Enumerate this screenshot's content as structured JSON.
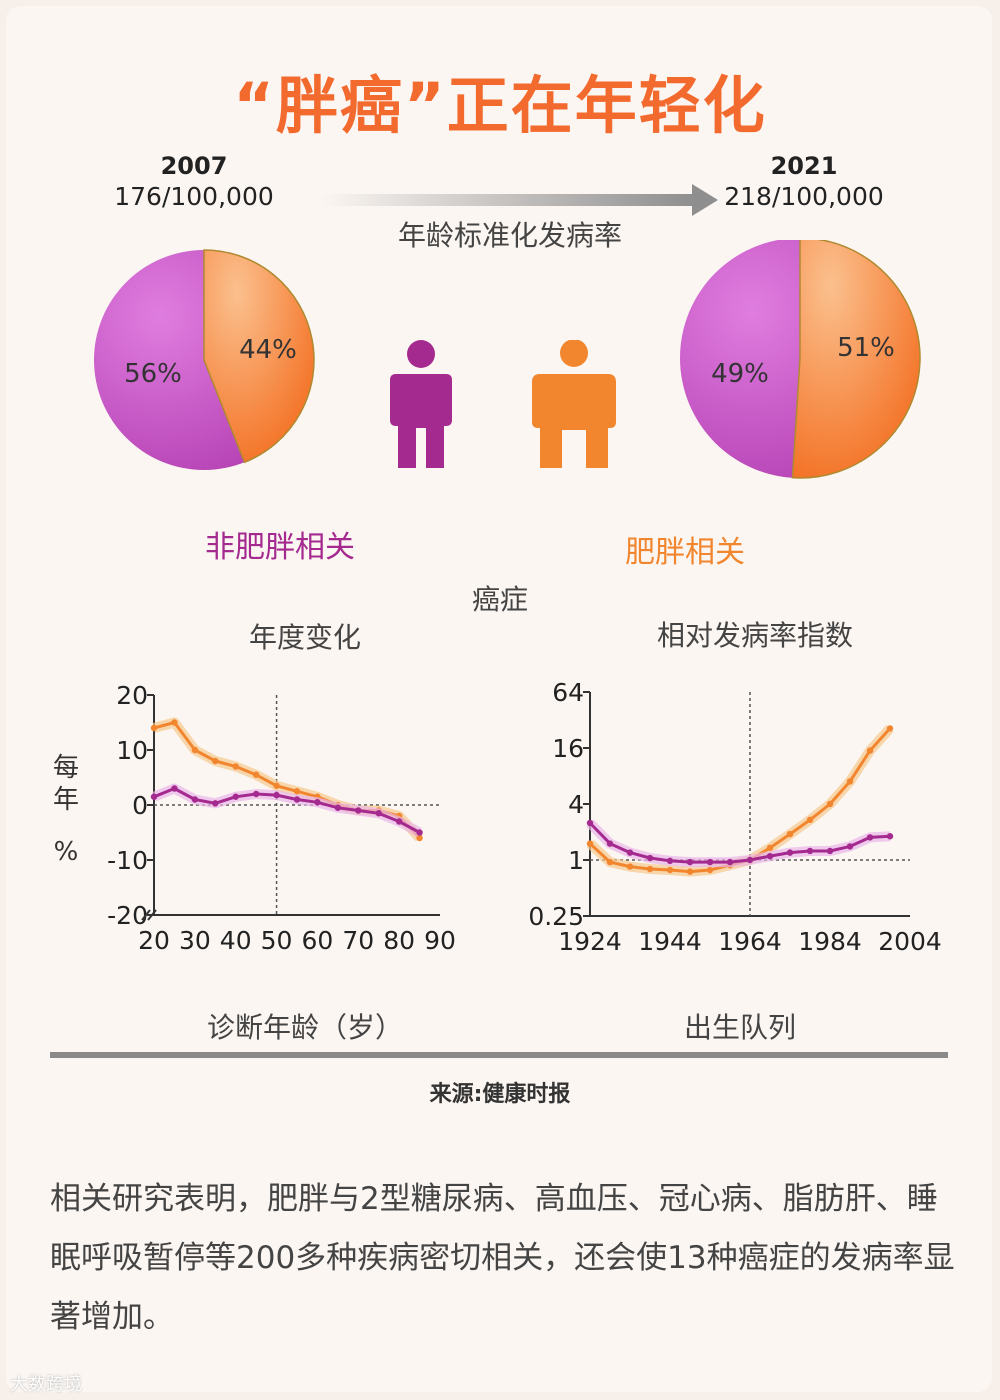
{
  "header": {
    "title": "“胖癌”正在年轻化"
  },
  "left_pie": {
    "year": "2007",
    "rate": "176/100,000"
  },
  "right_pie": {
    "year": "2021",
    "rate": "218/100,000"
  },
  "middle_label": "年龄标准化发病率",
  "category_labels": {
    "non_obesity": "非肥胖相关",
    "obesity": "肥胖相关"
  },
  "section_label": "癌症",
  "source": "来源:健康时报",
  "body_text": "相关研究表明，肥胖与2型糖尿病、高血压、冠心病、脂肪肝、睡眠呼吸暂停等200多种疾病密切相关，还会使13种癌症的发病率显著增加。",
  "footer_watermark": "大数跨境",
  "colors": {
    "orange": "#f2862f",
    "magenta": "#a52a8f",
    "pie_purple": "#c64cc0",
    "pie_orange": "#f7873a",
    "title": "#f36a2e"
  },
  "chart_data": [
    {
      "type": "pie",
      "title": "2007",
      "slices": [
        {
          "label": "56%",
          "name": "非肥胖相关",
          "value": 56
        },
        {
          "label": "44%",
          "name": "肥胖相关",
          "value": 44
        }
      ]
    },
    {
      "type": "pie",
      "title": "2021",
      "slices": [
        {
          "label": "49%",
          "name": "非肥胖相关",
          "value": 49
        },
        {
          "label": "51%",
          "name": "肥胖相关",
          "value": 51
        }
      ]
    },
    {
      "type": "line",
      "title": "年度变化",
      "xlabel": "诊断年龄（岁）",
      "ylabel": "每年%",
      "xlim": [
        20,
        90
      ],
      "ylim": [
        -20,
        20
      ],
      "xticks": [
        "20",
        "30",
        "40",
        "50",
        "60",
        "70",
        "80",
        "90"
      ],
      "yticks": [
        "20",
        "10",
        "0",
        "-10",
        "-20"
      ],
      "reference_lines": {
        "x": 50,
        "y": 0
      },
      "series": [
        {
          "name": "肥胖相关",
          "x": [
            20,
            25,
            30,
            35,
            40,
            45,
            50,
            55,
            60,
            65,
            70,
            75,
            80,
            85
          ],
          "values": [
            14,
            15,
            10,
            8,
            7,
            5.5,
            3.5,
            2.5,
            1.5,
            0,
            -1,
            -1,
            -2,
            -6
          ]
        },
        {
          "name": "非肥胖相关",
          "x": [
            20,
            25,
            30,
            35,
            40,
            45,
            50,
            55,
            60,
            65,
            70,
            75,
            80,
            85
          ],
          "values": [
            1.5,
            3,
            1,
            0.3,
            1.5,
            2,
            1.8,
            1,
            0.5,
            -0.5,
            -1,
            -1.5,
            -3,
            -5
          ]
        }
      ]
    },
    {
      "type": "line",
      "title": "相对发病率指数",
      "xlabel": "出生队列",
      "ylabel": "",
      "xlim": [
        1924,
        2004
      ],
      "ylim": [
        0.25,
        64
      ],
      "yscale": "log2",
      "xticks": [
        "1924",
        "1944",
        "1964",
        "1984",
        "2004"
      ],
      "yticks": [
        "64",
        "16",
        "4",
        "1",
        "0.25"
      ],
      "reference_lines": {
        "x": 1964,
        "y": 1
      },
      "series": [
        {
          "name": "肥胖相关",
          "x": [
            1924,
            1929,
            1934,
            1939,
            1944,
            1949,
            1954,
            1959,
            1964,
            1969,
            1974,
            1979,
            1984,
            1989,
            1994,
            1999
          ],
          "values": [
            1.5,
            0.95,
            0.85,
            0.8,
            0.78,
            0.75,
            0.78,
            0.88,
            1,
            1.35,
            1.9,
            2.7,
            4.0,
            7.0,
            15,
            26
          ]
        },
        {
          "name": "非肥胖相关",
          "x": [
            1924,
            1929,
            1934,
            1939,
            1944,
            1949,
            1954,
            1959,
            1964,
            1969,
            1974,
            1979,
            1984,
            1989,
            1994,
            1999
          ],
          "values": [
            2.5,
            1.5,
            1.2,
            1.05,
            0.98,
            0.95,
            0.95,
            0.95,
            1,
            1.1,
            1.2,
            1.25,
            1.25,
            1.4,
            1.75,
            1.8
          ]
        }
      ]
    }
  ]
}
